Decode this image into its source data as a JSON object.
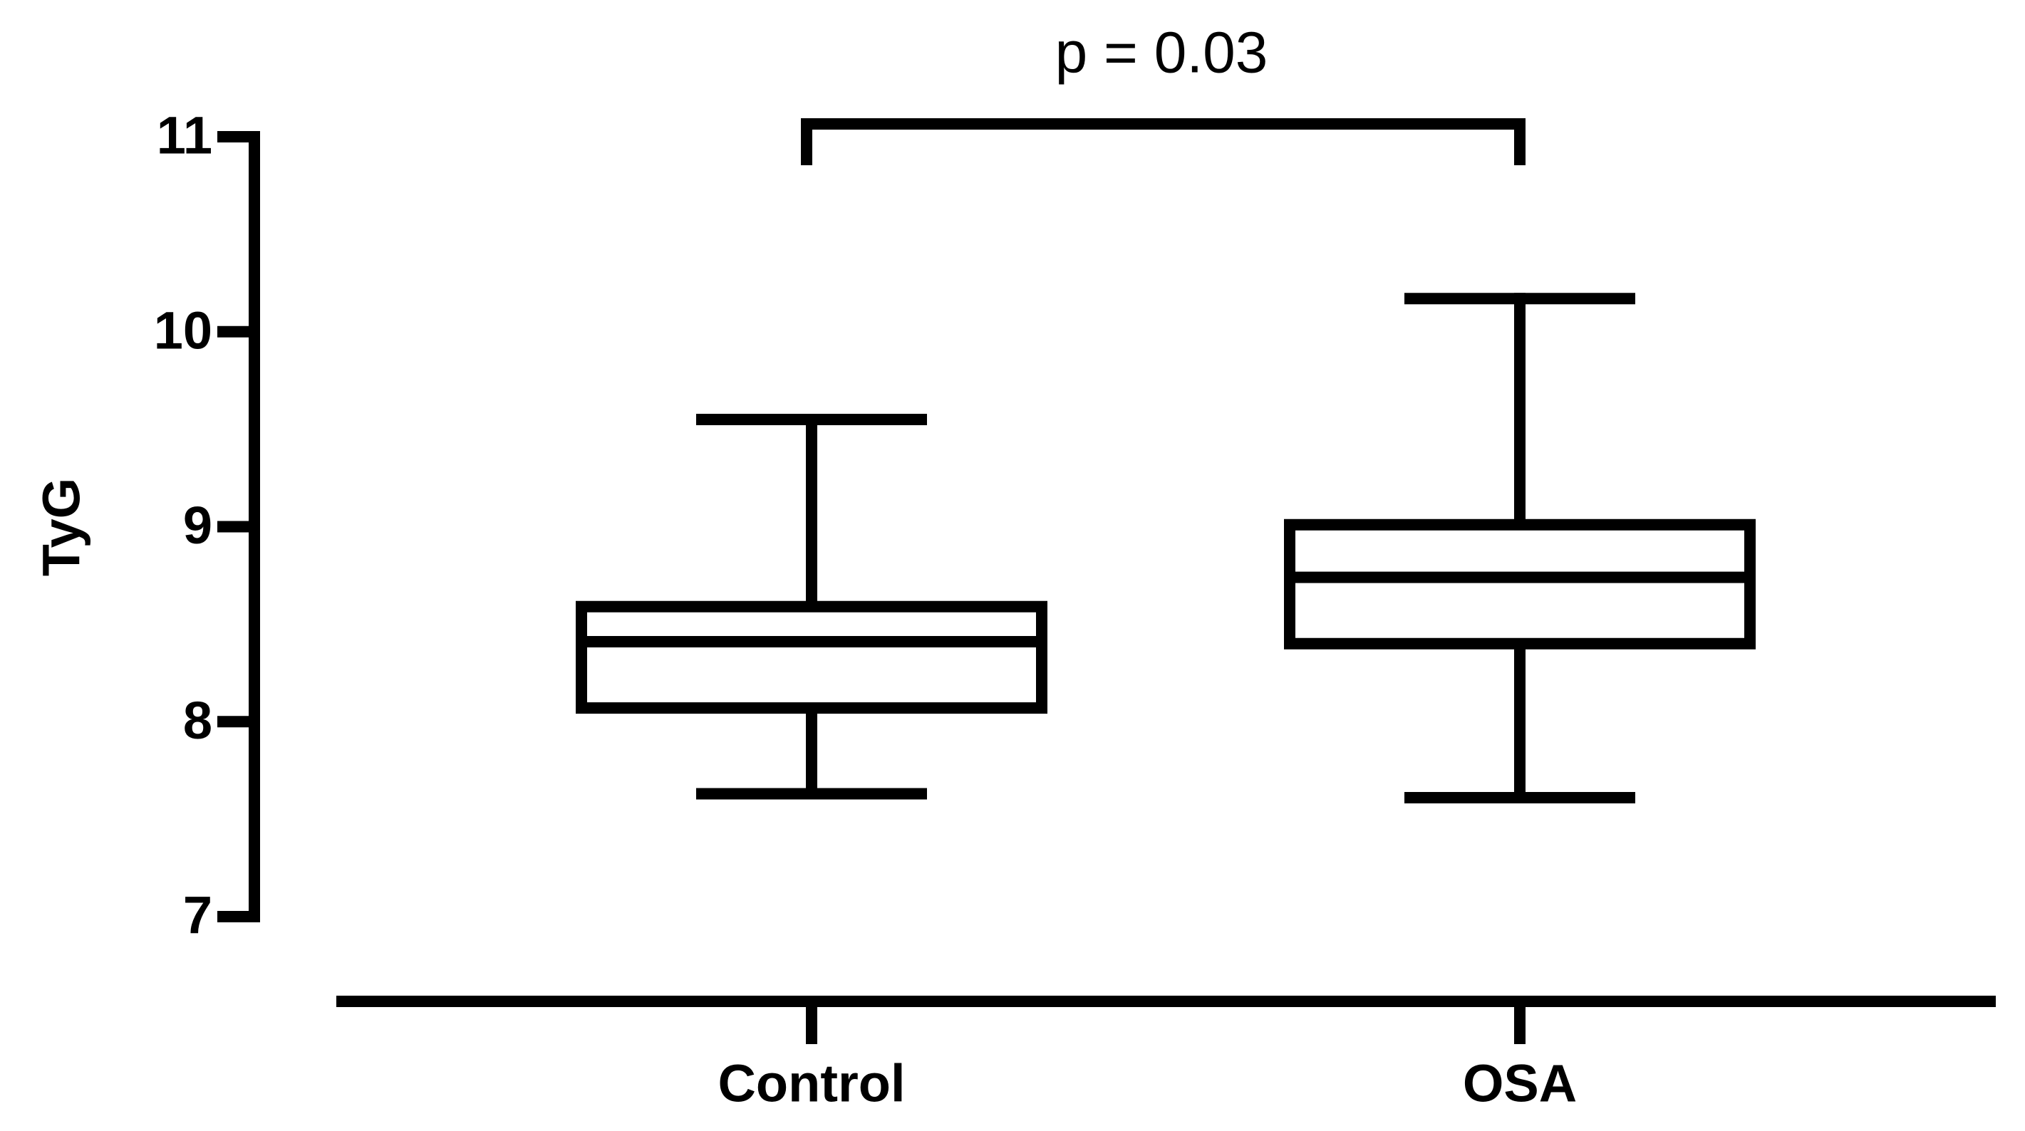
{
  "chart_data": {
    "type": "box",
    "annotation": "p = 0.03",
    "y_label": "TyG",
    "categories": [
      "Control",
      "OSA"
    ],
    "boxes": [
      {
        "min": 7.63,
        "q1": 8.07,
        "median": 8.41,
        "q3": 8.59,
        "max": 9.55
      },
      {
        "min": 7.61,
        "q1": 8.4,
        "median": 8.74,
        "q3": 9.01,
        "max": 10.17
      }
    ],
    "color": "#000000",
    "ylim": [
      7,
      11
    ],
    "yticks": [
      7,
      8,
      9,
      10,
      11
    ],
    "grid": false
  }
}
